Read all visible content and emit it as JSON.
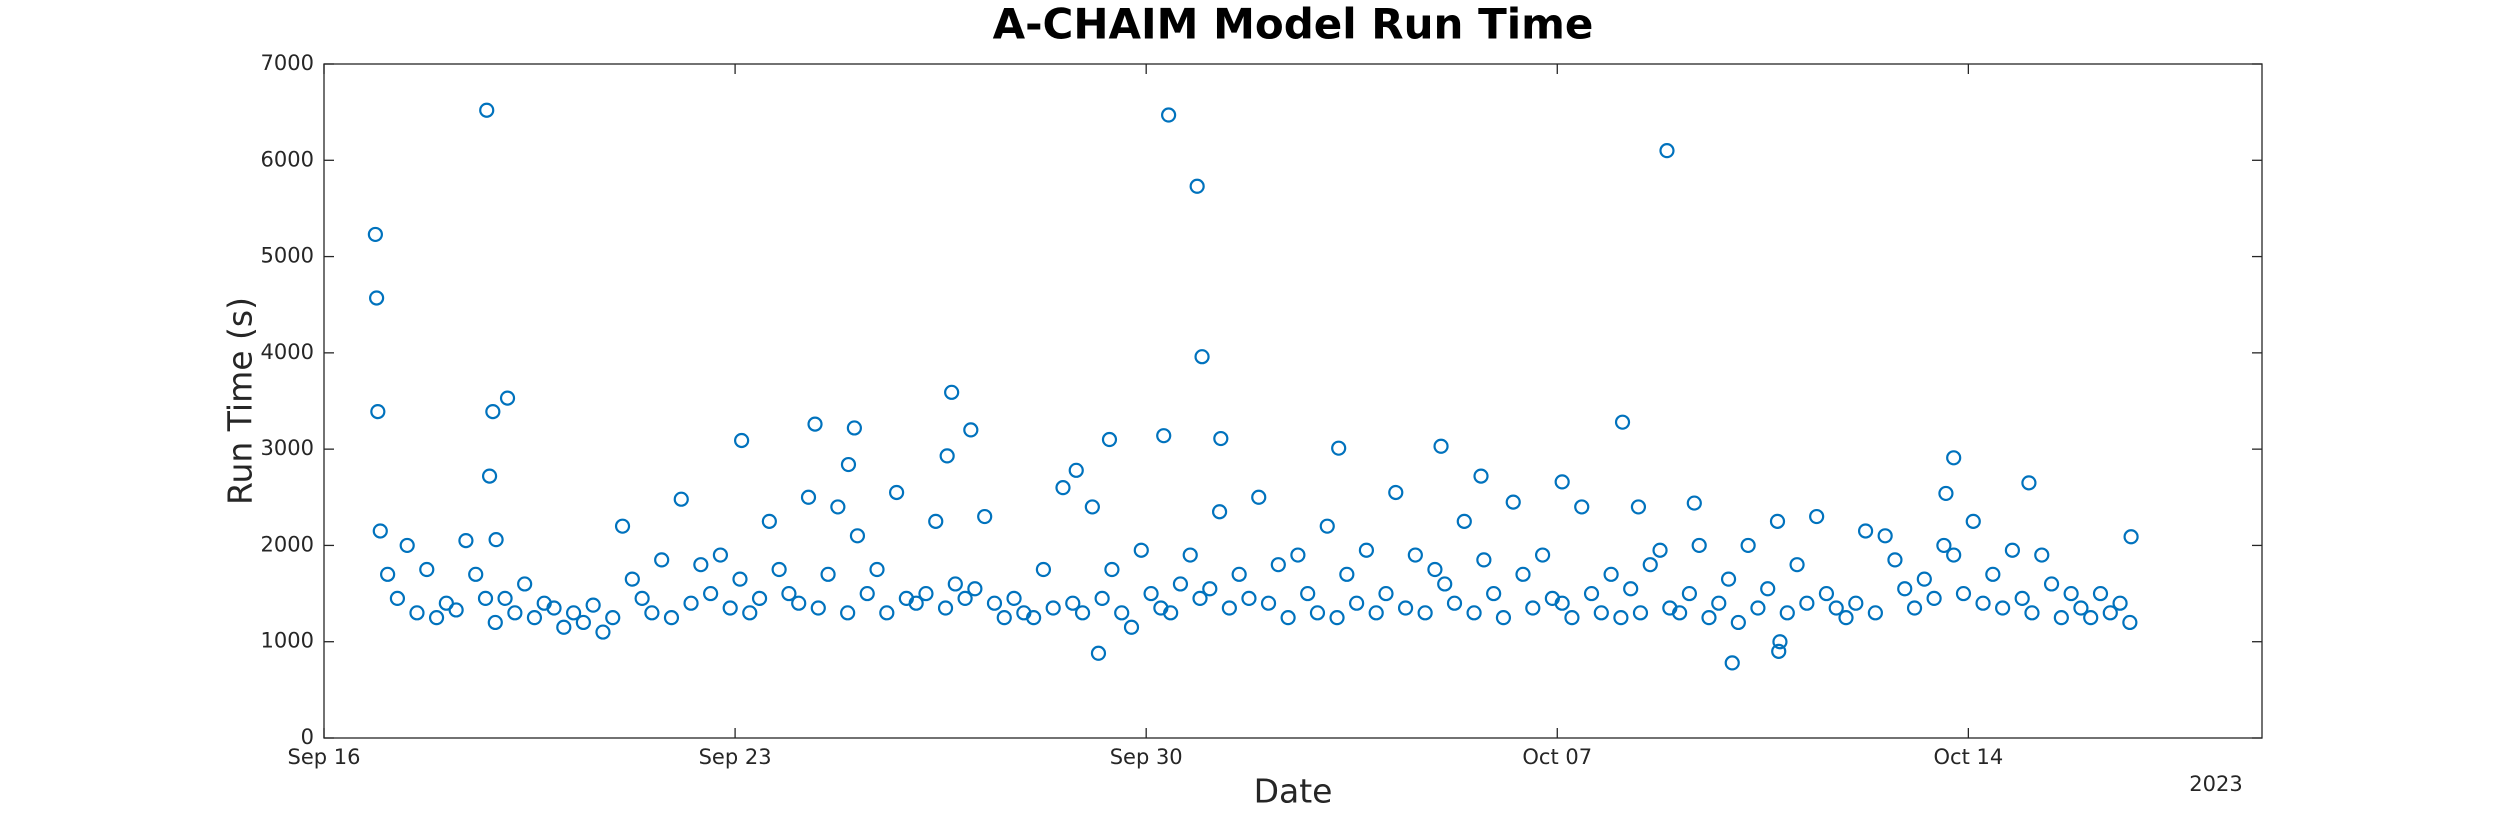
{
  "chart_data": {
    "type": "scatter",
    "title": "A-CHAIM Model Run Time",
    "xlabel": "Date",
    "ylabel": "Run Time (s)",
    "x_year_label": "2023",
    "color": "#0072bd",
    "xlim": [
      "2023-09-16T00:00",
      "2023-10-19T00:00"
    ],
    "xticks": [
      {
        "value": "2023-09-16T00:00",
        "label": "Sep 16"
      },
      {
        "value": "2023-09-23T00:00",
        "label": "Sep 23"
      },
      {
        "value": "2023-09-30T00:00",
        "label": "Sep 30"
      },
      {
        "value": "2023-10-07T00:00",
        "label": "Oct 07"
      },
      {
        "value": "2023-10-14T00:00",
        "label": "Oct 14"
      }
    ],
    "ylim": [
      0,
      7000
    ],
    "yticks": [
      0,
      1000,
      2000,
      3000,
      4000,
      5000,
      6000,
      7000
    ],
    "x": [
      "2023-09-17T02:00",
      "2023-09-17T06:00",
      "2023-09-17T10:00",
      "2023-09-17T14:00",
      "2023-09-17T18:00",
      "2023-09-17T22:00",
      "2023-09-18T02:00",
      "2023-09-18T06:00",
      "2023-09-18T10:00",
      "2023-09-18T14:00",
      "2023-09-18T18:00",
      "2023-09-18T22:00",
      "2023-09-19T02:00",
      "2023-09-19T06:00",
      "2023-09-19T10:00",
      "2023-09-19T14:00",
      "2023-09-19T18:00",
      "2023-09-19T22:00",
      "2023-09-20T02:00",
      "2023-09-20T06:00",
      "2023-09-20T10:00",
      "2023-09-20T14:00",
      "2023-09-20T18:00",
      "2023-09-20T22:00",
      "2023-09-21T02:00",
      "2023-09-21T06:00",
      "2023-09-21T10:00",
      "2023-09-21T14:00",
      "2023-09-21T18:00",
      "2023-09-21T22:00",
      "2023-09-22T02:00",
      "2023-09-22T06:00",
      "2023-09-22T10:00",
      "2023-09-22T14:00",
      "2023-09-22T18:00",
      "2023-09-22T22:00",
      "2023-09-23T02:00",
      "2023-09-23T06:00",
      "2023-09-23T10:00",
      "2023-09-23T14:00",
      "2023-09-23T18:00",
      "2023-09-23T22:00",
      "2023-09-24T02:00",
      "2023-09-24T06:00",
      "2023-09-24T10:00",
      "2023-09-24T14:00",
      "2023-09-24T18:00",
      "2023-09-24T22:00",
      "2023-09-25T02:00",
      "2023-09-25T06:00",
      "2023-09-25T10:00",
      "2023-09-25T14:00",
      "2023-09-25T18:00",
      "2023-09-25T22:00",
      "2023-09-26T02:00",
      "2023-09-26T06:00",
      "2023-09-26T10:00",
      "2023-09-26T14:00",
      "2023-09-26T18:00",
      "2023-09-26T22:00",
      "2023-09-27T02:00",
      "2023-09-27T06:00",
      "2023-09-27T10:00",
      "2023-09-27T14:00",
      "2023-09-27T18:00",
      "2023-09-27T22:00",
      "2023-09-28T02:00",
      "2023-09-28T06:00",
      "2023-09-28T10:00",
      "2023-09-28T14:00",
      "2023-09-28T18:00",
      "2023-09-28T22:00",
      "2023-09-29T02:00",
      "2023-09-29T06:00",
      "2023-09-29T10:00",
      "2023-09-29T14:00",
      "2023-09-29T18:00",
      "2023-09-29T22:00",
      "2023-09-30T02:00",
      "2023-09-30T06:00",
      "2023-09-30T10:00",
      "2023-09-30T14:00",
      "2023-09-30T18:00",
      "2023-09-30T22:00",
      "2023-10-01T02:00",
      "2023-10-01T06:00",
      "2023-10-01T10:00",
      "2023-10-01T14:00",
      "2023-10-01T18:00",
      "2023-10-01T22:00",
      "2023-10-02T02:00",
      "2023-10-02T06:00",
      "2023-10-02T10:00",
      "2023-10-02T14:00",
      "2023-10-02T18:00",
      "2023-10-02T22:00",
      "2023-10-03T02:00",
      "2023-10-03T06:00",
      "2023-10-03T10:00",
      "2023-10-03T14:00",
      "2023-10-03T18:00",
      "2023-10-03T22:00",
      "2023-10-04T02:00",
      "2023-10-04T06:00",
      "2023-10-04T10:00",
      "2023-10-04T14:00",
      "2023-10-04T18:00",
      "2023-10-04T22:00",
      "2023-10-05T02:00",
      "2023-10-05T06:00",
      "2023-10-05T10:00",
      "2023-10-05T14:00",
      "2023-10-05T18:00",
      "2023-10-05T22:00",
      "2023-10-06T02:00",
      "2023-10-06T06:00",
      "2023-10-06T10:00",
      "2023-10-06T14:00",
      "2023-10-06T18:00",
      "2023-10-06T22:00",
      "2023-10-07T02:00",
      "2023-10-07T06:00",
      "2023-10-07T10:00",
      "2023-10-07T14:00",
      "2023-10-07T18:00",
      "2023-10-07T22:00",
      "2023-10-08T02:00",
      "2023-10-08T06:00",
      "2023-10-08T10:00",
      "2023-10-08T14:00",
      "2023-10-08T18:00",
      "2023-10-08T22:00",
      "2023-10-09T02:00",
      "2023-10-09T06:00",
      "2023-10-09T10:00",
      "2023-10-09T14:00",
      "2023-10-09T18:00",
      "2023-10-09T22:00",
      "2023-10-10T02:00",
      "2023-10-10T06:00",
      "2023-10-10T10:00",
      "2023-10-10T14:00",
      "2023-10-10T18:00",
      "2023-10-10T22:00",
      "2023-10-11T02:00",
      "2023-10-11T06:00",
      "2023-10-11T10:00",
      "2023-10-11T14:00",
      "2023-10-11T18:00",
      "2023-10-11T22:00",
      "2023-10-12T02:00",
      "2023-10-12T06:00",
      "2023-10-12T10:00",
      "2023-10-12T14:00",
      "2023-10-12T18:00",
      "2023-10-12T22:00",
      "2023-10-13T02:00",
      "2023-10-13T06:00",
      "2023-10-13T10:00",
      "2023-10-13T14:00",
      "2023-10-13T18:00",
      "2023-10-13T22:00",
      "2023-10-14T02:00",
      "2023-10-14T06:00",
      "2023-10-14T10:00",
      "2023-10-14T14:00",
      "2023-10-14T18:00",
      "2023-10-14T22:00",
      "2023-10-15T02:00",
      "2023-10-15T06:00",
      "2023-10-15T10:00",
      "2023-10-15T14:00",
      "2023-10-15T18:00",
      "2023-10-15T22:00",
      "2023-10-16T02:00",
      "2023-10-16T06:00",
      "2023-10-16T10:00",
      "2023-10-16T14:00",
      "2023-10-16T18:00",
      "2023-09-16T21:00",
      "2023-09-16T21:30",
      "2023-09-16T22:00",
      "2023-09-16T23:00",
      "2023-09-18T18:30",
      "2023-09-18T19:40",
      "2023-09-18T21:00",
      "2023-09-18T22:20",
      "2023-09-19T03:00",
      "2023-09-23T02:40",
      "2023-09-24T08:40",
      "2023-09-24T22:20",
      "2023-09-25T00:45",
      "2023-09-26T14:40",
      "2023-09-26T16:30",
      "2023-09-27T00:20",
      "2023-09-28T19:25",
      "2023-09-29T04:30",
      "2023-09-29T09:00",
      "2023-09-30T07:10",
      "2023-09-30T09:10",
      "2023-09-30T20:50",
      "2023-09-30T22:50",
      "2023-10-01T06:30",
      "2023-10-03T06:40",
      "2023-10-05T00:30",
      "2023-10-05T16:50",
      "2023-10-07T02:00",
      "2023-10-08T02:40",
      "2023-10-08T09:10",
      "2023-10-08T20:50",
      "2023-10-09T08:00",
      "2023-10-09T23:30",
      "2023-10-10T18:30",
      "2023-10-10T19:00",
      "2023-10-13T14:50",
      "2023-10-13T18:00",
      "2023-10-15T00:45",
      "2023-10-16T18:30"
    ],
    "values": [
      1700,
      1450,
      2000,
      1300,
      1750,
      1250,
      1400,
      1330,
      2050,
      1700,
      1450,
      1200,
      1450,
      1300,
      1600,
      1250,
      1400,
      1350,
      1150,
      1300,
      1200,
      1380,
      1100,
      1250,
      2200,
      1650,
      1450,
      1300,
      1850,
      1250,
      2480,
      1400,
      1800,
      1500,
      1900,
      1350,
      1650,
      1300,
      1450,
      2250,
      1750,
      1500,
      1400,
      2500,
      1350,
      1700,
      2400,
      1300,
      2100,
      1500,
      1750,
      1300,
      2550,
      1450,
      1400,
      1500,
      2250,
      1350,
      1600,
      1450,
      1550,
      2300,
      1400,
      1250,
      1450,
      1300,
      1250,
      1750,
      1350,
      2600,
      1400,
      1300,
      2400,
      1450,
      1750,
      1300,
      1150,
      1950,
      1500,
      1350,
      1300,
      1600,
      1900,
      1450,
      1550,
      2350,
      1350,
      1700,
      1450,
      2500,
      1400,
      1800,
      1250,
      1900,
      1500,
      1300,
      2200,
      1250,
      1700,
      1400,
      1950,
      1300,
      1500,
      2550,
      1350,
      1900,
      1300,
      1750,
      1600,
      1400,
      2250,
      1300,
      1850,
      1500,
      1250,
      2450,
      1700,
      1350,
      1900,
      1450,
      1400,
      1250,
      2400,
      1500,
      1300,
      1700,
      1250,
      1550,
      1300,
      1800,
      1950,
      1350,
      1300,
      1500,
      2000,
      1250,
      1400,
      1650,
      1200,
      2000,
      1350,
      1550,
      2250,
      1300,
      1800,
      1400,
      2300,
      1500,
      1350,
      1250,
      1400,
      2150,
      1300,
      2100,
      1850,
      1550,
      1350,
      1650,
      1450,
      2000,
      1900,
      1500,
      2250,
      1400,
      1700,
      1350,
      1950,
      1450,
      1300,
      1900,
      1600,
      1250,
      1500,
      1350,
      1250,
      1500,
      1300,
      1400,
      1200,
      5230,
      4570,
      3390,
      2150,
      6520,
      2720,
      3390,
      2060,
      3530,
      3090,
      3260,
      2840,
      3220,
      2930,
      3590,
      3200,
      2780,
      880,
      3100,
      3140,
      6470,
      5730,
      3960,
      3110,
      3010,
      3030,
      2720,
      2660,
      3280,
      2400,
      6100,
      2440,
      780,
      900,
      1000,
      2540,
      2910,
      2650,
      2090
    ]
  }
}
